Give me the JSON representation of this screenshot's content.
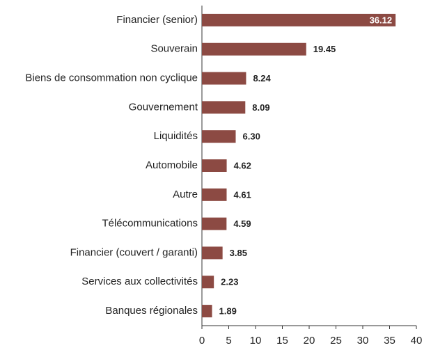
{
  "chart_data": {
    "type": "hbar",
    "categories": [
      "Financier (senior)",
      "Souverain",
      "Biens de consommation non cyclique",
      "Gouvernement",
      "Liquidités",
      "Automobile",
      "Autre",
      "Télécommunications",
      "Financier (couvert / garanti)",
      "Services aux collectivités",
      "Banques régionales"
    ],
    "values": [
      36.12,
      19.45,
      8.24,
      8.09,
      6.3,
      4.62,
      4.61,
      4.59,
      3.85,
      2.23,
      1.89
    ],
    "value_labels": [
      "36.12",
      "19.45",
      "8.24",
      "8.09",
      "6.30",
      "4.62",
      "4.61",
      "4.59",
      "3.85",
      "2.23",
      "1.89"
    ],
    "color": "#8c4a43",
    "xlim": [
      0,
      40
    ],
    "xticks": [
      0,
      5,
      10,
      15,
      20,
      25,
      30,
      35,
      40
    ]
  }
}
